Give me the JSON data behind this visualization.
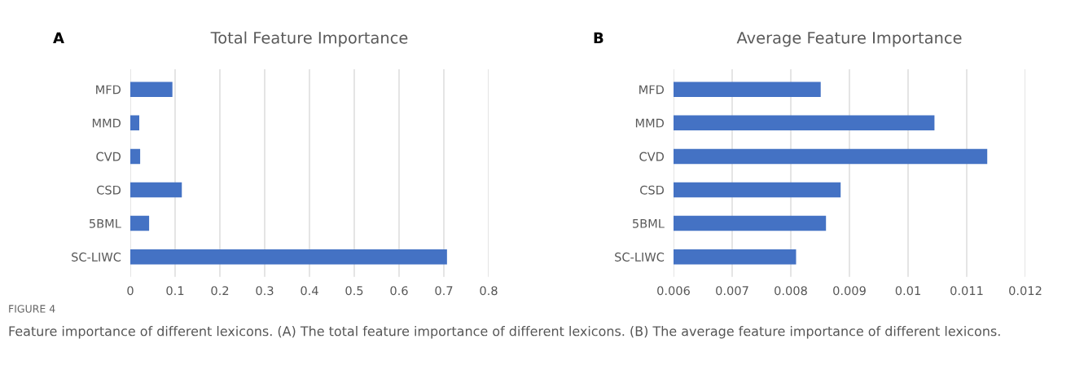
{
  "chart_data": [
    {
      "type": "bar",
      "orientation": "horizontal",
      "title": "Total Feature Importance",
      "categories": [
        "MFD",
        "MMD",
        "CVD",
        "CSD",
        "5BML",
        "SC-LIWC"
      ],
      "values": [
        0.094,
        0.02,
        0.022,
        0.115,
        0.042,
        0.707
      ],
      "color": "#4472c4",
      "xlim": [
        0,
        0.8
      ],
      "xticks": [
        0,
        0.1,
        0.2,
        0.3,
        0.4,
        0.5,
        0.6,
        0.7,
        0.8
      ],
      "grid": "x",
      "annotations": [
        "A"
      ]
    },
    {
      "type": "bar",
      "orientation": "horizontal",
      "title": "Average Feature Importance",
      "categories": [
        "MFD",
        "MMD",
        "CVD",
        "CSD",
        "5BML",
        "SC-LIWC"
      ],
      "values": [
        0.00851,
        0.01045,
        0.01135,
        0.00885,
        0.0086,
        0.00809
      ],
      "color": "#4472c4",
      "xlim": [
        0.006,
        0.012
      ],
      "xticks": [
        0.006,
        0.007,
        0.008,
        0.009,
        0.01,
        0.011,
        0.012
      ],
      "grid": "x",
      "annotations": [
        "B",
        "FIGURE 4",
        "Feature importance of different lexicons. (A) The total feature importance of different lexicons. (B) The average feature importance of different lexicons."
      ]
    }
  ]
}
